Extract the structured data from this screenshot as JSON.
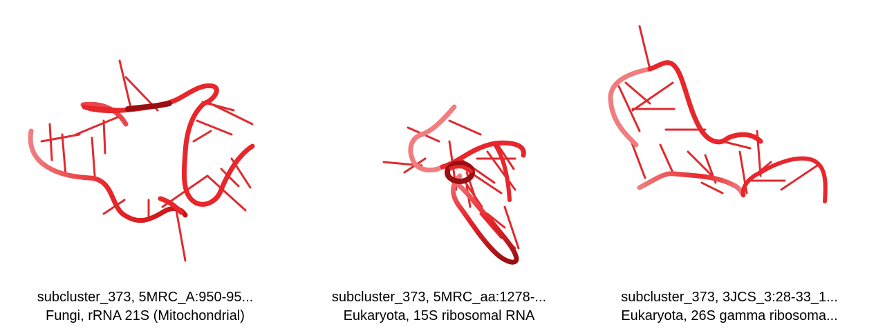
{
  "structures": [
    {
      "line1": "subcluster_373, 5MRC_A:950-95...",
      "line2": "Fungi, rRNA 21S (Mitochondrial)"
    },
    {
      "line1": "subcluster_373, 5MRC_aa:1278-...",
      "line2": "Eukaryota, 15S ribosomal RNA"
    },
    {
      "line1": "subcluster_373, 3JCS_3:28-33_1...",
      "line2": "Eukaryota, 26S gamma ribosoma..."
    }
  ],
  "colors": {
    "backbone": "#e8262b",
    "backbone_dark": "#9a0e12",
    "backbone_light": "#f07d80",
    "base": "#e02a2e"
  }
}
